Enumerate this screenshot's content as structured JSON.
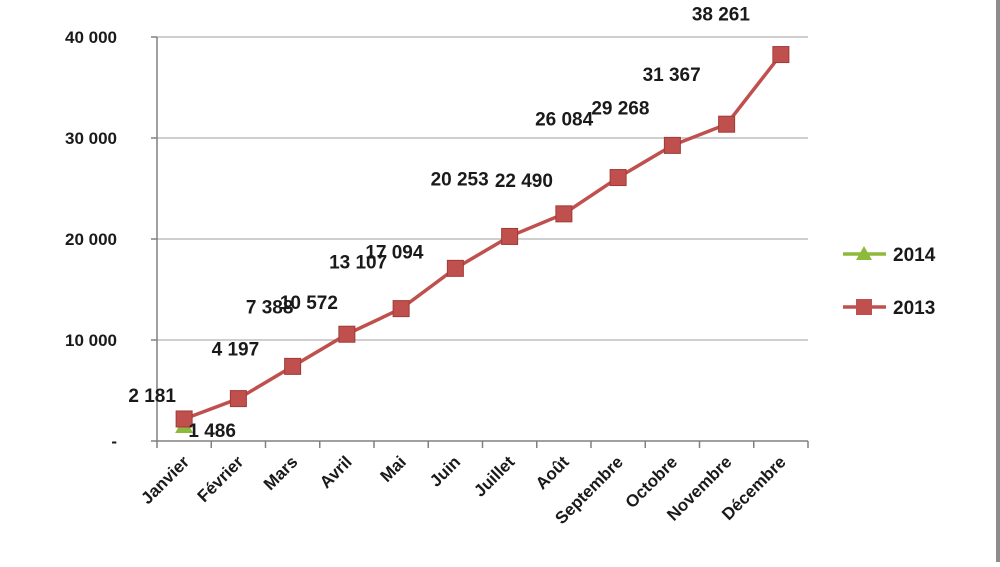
{
  "chart_data": {
    "type": "line",
    "title": "",
    "xlabel": "",
    "ylabel": "",
    "categories": [
      "Janvier",
      "Février",
      "Mars",
      "Avril",
      "Mai",
      "Juin",
      "Juillet",
      "Août",
      "Septembre",
      "Octobre",
      "Novembre",
      "Décembre"
    ],
    "ylim": [
      0,
      40000
    ],
    "y_ticks": [
      {
        "value": 0,
        "label": "-"
      },
      {
        "value": 10000,
        "label": "10 000"
      },
      {
        "value": 20000,
        "label": "20 000"
      },
      {
        "value": 30000,
        "label": "30 000"
      },
      {
        "value": 40000,
        "label": "40 000"
      }
    ],
    "grid": true,
    "legend_position": "right",
    "series": [
      {
        "name": "2014",
        "color": "#8dba3c",
        "marker": "triangle",
        "values": [
          1486,
          null,
          null,
          null,
          null,
          null,
          null,
          null,
          null,
          null,
          null,
          null
        ],
        "labels": [
          "1 486",
          null,
          null,
          null,
          null,
          null,
          null,
          null,
          null,
          null,
          null,
          null
        ]
      },
      {
        "name": "2013",
        "color": "#c0504d",
        "marker": "square",
        "values": [
          2181,
          4197,
          7388,
          10572,
          13107,
          17094,
          20253,
          22490,
          26084,
          29268,
          31367,
          38261
        ],
        "labels": [
          "2 181",
          "4 197",
          "7 388",
          "10 572",
          "13 107",
          "17 094",
          "20 253",
          "22 490",
          "26 084",
          "29 268",
          "31 367",
          "38 261"
        ]
      }
    ]
  }
}
